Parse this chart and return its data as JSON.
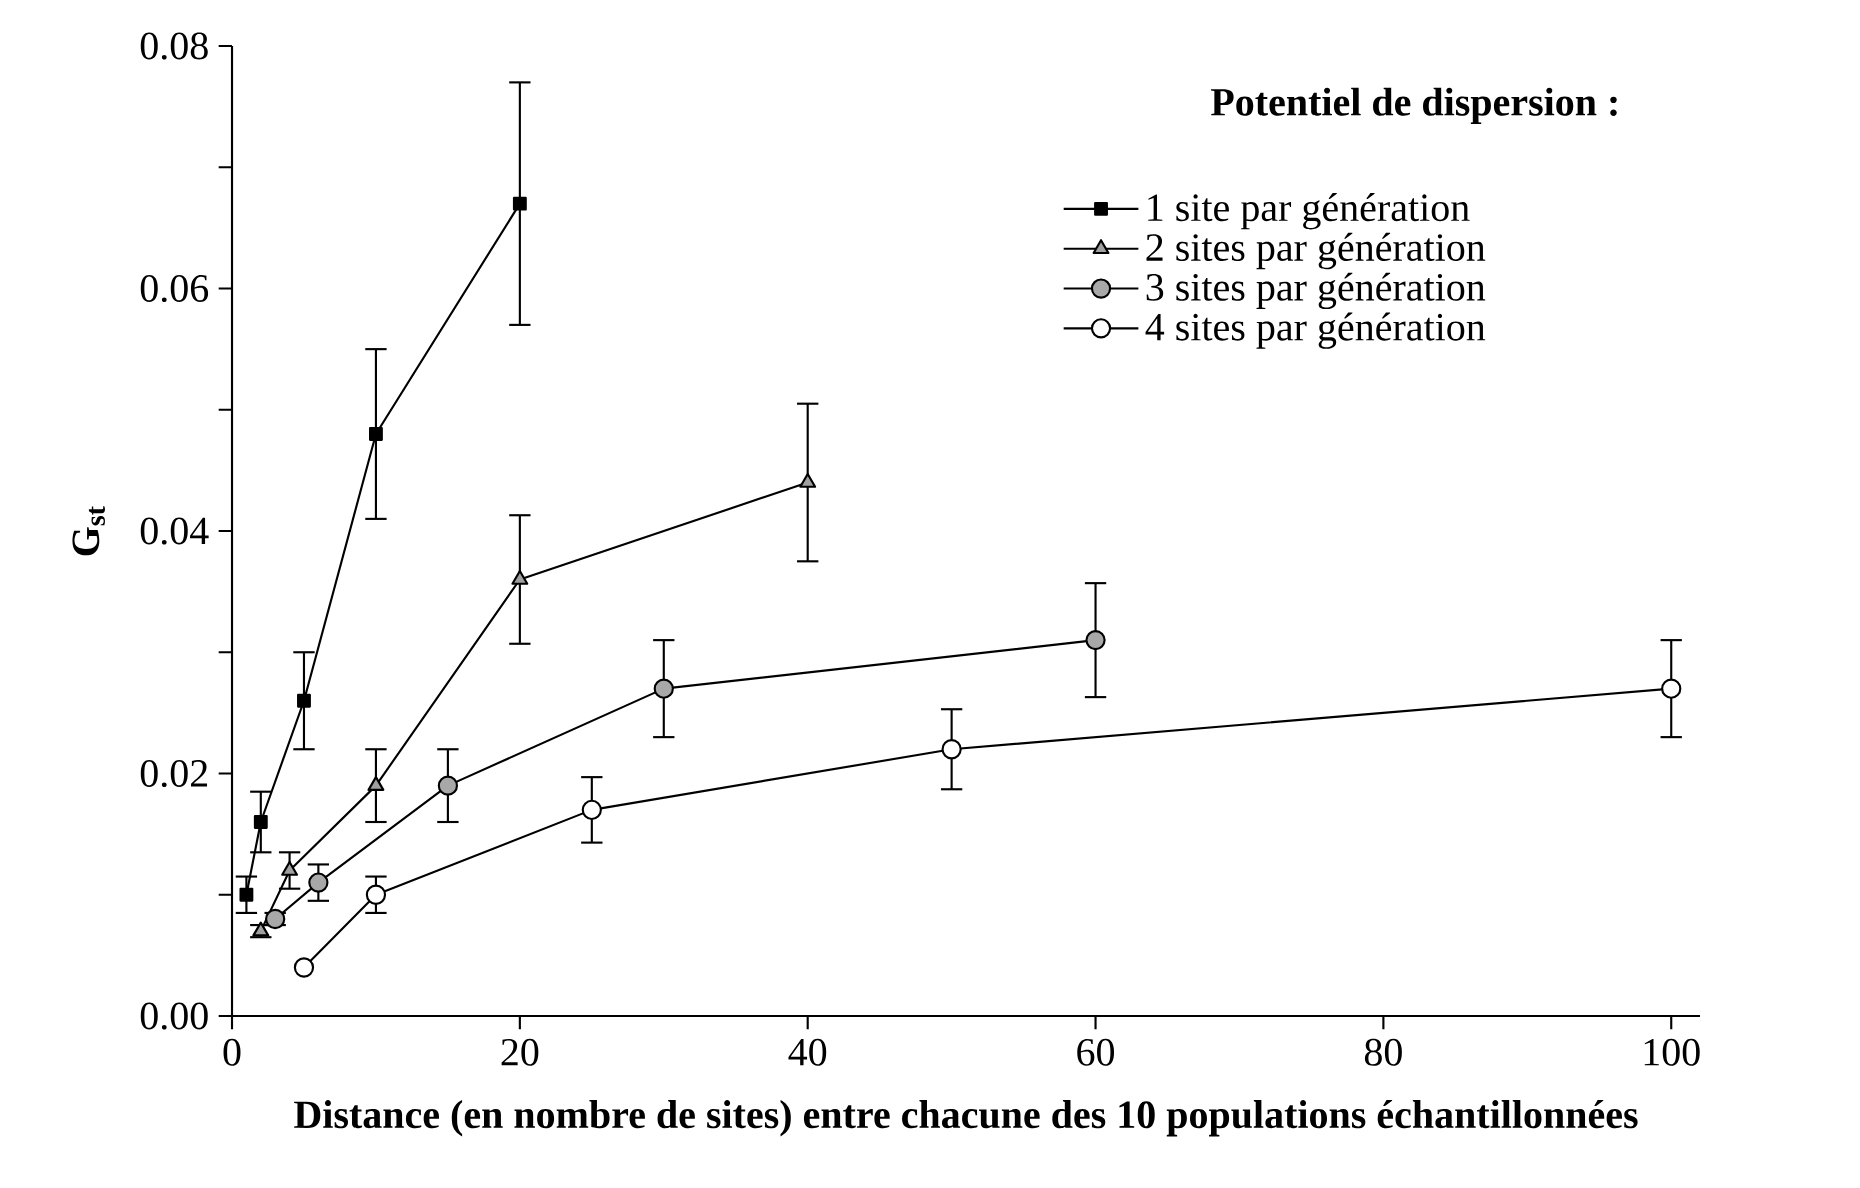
{
  "chart_data": {
    "type": "line",
    "xlabel": "Distance (en nombre de sites) entre chacune des 10 populations échantillonnées",
    "ylabel": "G$_{st}$",
    "legend_title": "Potentiel de dispersion :",
    "xlim": [
      0,
      102
    ],
    "ylim": [
      0,
      0.08
    ],
    "xticks": [
      0,
      20,
      40,
      60,
      80,
      100
    ],
    "yticks": [
      {
        "value": 0,
        "label": "0.00"
      },
      {
        "value": 0.01,
        "label": null
      },
      {
        "value": 0.02,
        "label": "0.02"
      },
      {
        "value": 0.03,
        "label": null
      },
      {
        "value": 0.04,
        "label": "0.04"
      },
      {
        "value": 0.05,
        "label": null
      },
      {
        "value": 0.06,
        "label": "0.06"
      },
      {
        "value": 0.07,
        "label": null
      },
      {
        "value": 0.08,
        "label": "0.08"
      }
    ],
    "legend": "top right",
    "grid": false,
    "series": [
      {
        "name": "1 site par génération",
        "color": "#000000",
        "marker": "square",
        "x": [
          1,
          2,
          5,
          10,
          20
        ],
        "values": [
          0.01,
          0.016,
          0.026,
          0.048,
          0.067
        ],
        "errors": [
          0.0015,
          0.0025,
          0.004,
          0.007,
          0.01
        ]
      },
      {
        "name": "2 sites par génération",
        "color": "#000000",
        "marker": "triangle",
        "x": [
          2,
          4,
          10,
          20,
          40
        ],
        "values": [
          0.007,
          0.012,
          0.019,
          0.036,
          0.044
        ],
        "errors": [
          0.0005,
          0.0015,
          0.003,
          0.0053,
          0.0065
        ]
      },
      {
        "name": "3 sites par génération",
        "color": "#000000",
        "marker": "circle",
        "x": [
          3,
          6,
          15,
          30,
          60
        ],
        "values": [
          0.008,
          0.011,
          0.019,
          0.027,
          0.031
        ],
        "errors": [
          0.0005,
          0.0015,
          0.003,
          0.004,
          0.0047
        ]
      },
      {
        "name": "4 sites par génération",
        "color": "#000000",
        "marker": "circle",
        "x": [
          5,
          10,
          25,
          50,
          100
        ],
        "values": [
          0.004,
          0.01,
          0.017,
          0.022,
          0.027
        ],
        "errors": [
          null,
          0.0015,
          0.0027,
          0.0033,
          0.004
        ]
      }
    ]
  }
}
